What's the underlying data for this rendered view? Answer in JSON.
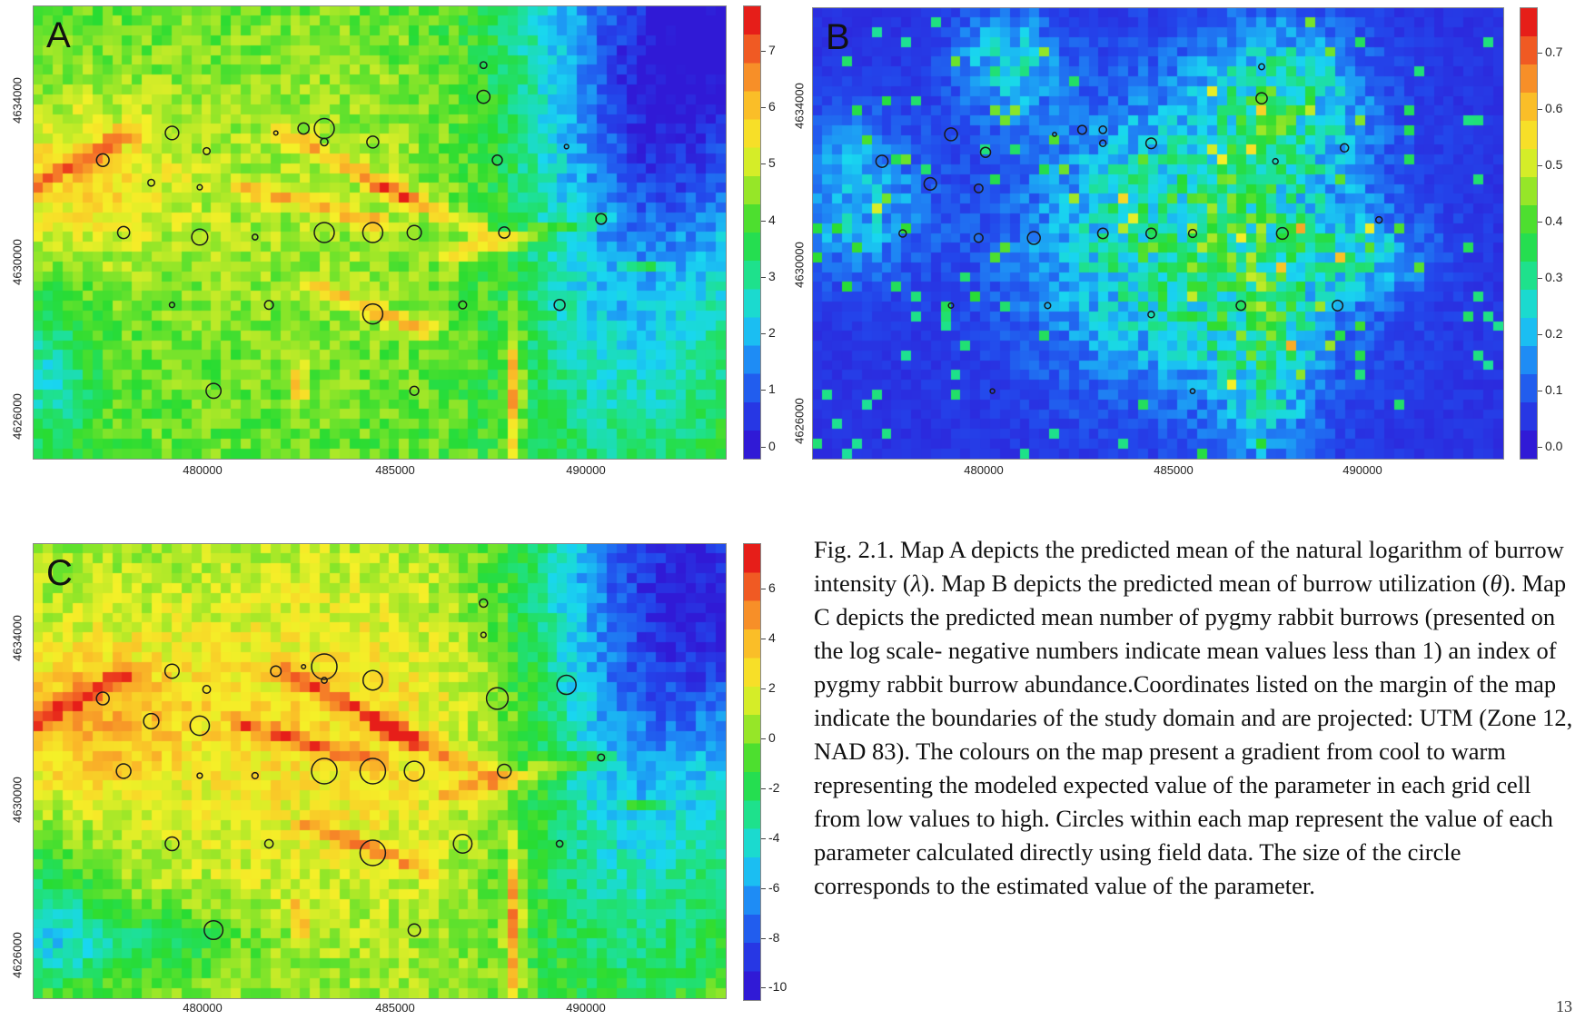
{
  "panels": [
    {
      "id": "A",
      "letter": "A",
      "variant": "lambda",
      "x_ticks": [
        "480000",
        "485000",
        "490000"
      ],
      "y_ticks": [
        "4634000",
        "4630000",
        "4626000"
      ],
      "colorbar_labels": [
        "7",
        "6",
        "5",
        "4",
        "3",
        "2",
        "1",
        "0"
      ]
    },
    {
      "id": "B",
      "letter": "B",
      "variant": "theta",
      "x_ticks": [
        "480000",
        "485000",
        "490000"
      ],
      "y_ticks": [
        "4634000",
        "4630000",
        "4626000"
      ],
      "colorbar_labels": [
        "0.7",
        "0.6",
        "0.5",
        "0.4",
        "0.3",
        "0.2",
        "0.1",
        "0.0"
      ]
    },
    {
      "id": "C",
      "letter": "C",
      "variant": "count",
      "x_ticks": [
        "480000",
        "485000",
        "490000"
      ],
      "y_ticks": [
        "4634000",
        "4630000",
        "4626000"
      ],
      "colorbar_labels": [
        "6",
        "4",
        "2",
        "0",
        "-2",
        "-4",
        "-6",
        "-8",
        "-10"
      ]
    }
  ],
  "caption": {
    "fig_label": "Fig. 2.1.",
    "text_1": " Map A depicts the predicted mean of the natural logarithm of burrow intensity (",
    "symbol_1": "λ",
    "text_2": "). Map B depicts the predicted mean of burrow utilization (",
    "symbol_2": "θ",
    "text_3": "). Map C depicts the predicted mean number of pygmy rabbit burrows (presented on the log scale- negative numbers indicate mean values less than 1) an index of pygmy rabbit burrow abundance.Coordinates listed on the margin of the map indicate the boundaries of the study domain and are projected: UTM (Zone 12, NAD 83). The colours on the map present a gradient from cool to warm representing the modeled expected value of the parameter in each grid cell from low values to high. Circles within each map represent the value of each parameter calculated directly using field data. The size of the circle corresponds to the estimated value of the parameter."
  },
  "page_number": "13",
  "colors": {
    "warm": "#e8201a",
    "cool": "#2b1fd6",
    "circle_stroke": "#1a1a1a"
  }
}
